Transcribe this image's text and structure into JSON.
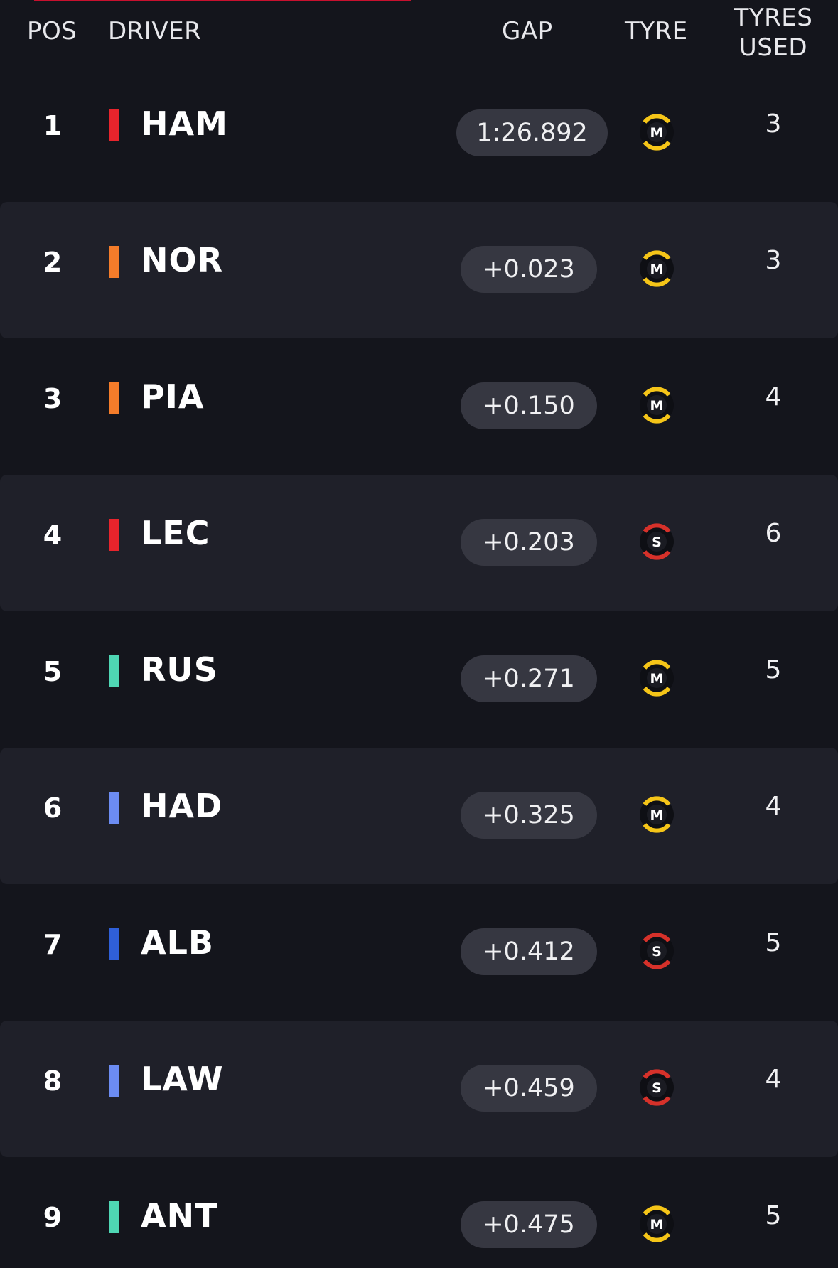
{
  "header": {
    "pos": "POS",
    "driver": "DRIVER",
    "gap": "GAP",
    "tyre": "TYRE",
    "tyres_used_line1": "TYRES",
    "tyres_used_line2": "USED"
  },
  "colors": {
    "background": "#14151c",
    "row_alt": "#1f2029",
    "pill": "#363741",
    "medium_tyre": "#f5c518",
    "soft_tyre": "#d6312a",
    "accent_line": "#c8102e"
  },
  "rows": [
    {
      "pos": "1",
      "code": "HAM",
      "team_color": "#e8242c",
      "gap": "1:26.892",
      "tyre": "M",
      "tyre_icon": "medium-tyre-icon",
      "used": "3"
    },
    {
      "pos": "2",
      "code": "NOR",
      "team_color": "#f47c2a",
      "gap": "+0.023",
      "tyre": "M",
      "tyre_icon": "medium-tyre-icon",
      "used": "3"
    },
    {
      "pos": "3",
      "code": "PIA",
      "team_color": "#f47c2a",
      "gap": "+0.150",
      "tyre": "M",
      "tyre_icon": "medium-tyre-icon",
      "used": "4"
    },
    {
      "pos": "4",
      "code": "LEC",
      "team_color": "#e8242c",
      "gap": "+0.203",
      "tyre": "S",
      "tyre_icon": "soft-tyre-icon",
      "used": "6"
    },
    {
      "pos": "5",
      "code": "RUS",
      "team_color": "#4fd6b4",
      "gap": "+0.271",
      "tyre": "M",
      "tyre_icon": "medium-tyre-icon",
      "used": "5"
    },
    {
      "pos": "6",
      "code": "HAD",
      "team_color": "#6c8cf2",
      "gap": "+0.325",
      "tyre": "M",
      "tyre_icon": "medium-tyre-icon",
      "used": "4"
    },
    {
      "pos": "7",
      "code": "ALB",
      "team_color": "#2f5fd8",
      "gap": "+0.412",
      "tyre": "S",
      "tyre_icon": "soft-tyre-icon",
      "used": "5"
    },
    {
      "pos": "8",
      "code": "LAW",
      "team_color": "#6c8cf2",
      "gap": "+0.459",
      "tyre": "S",
      "tyre_icon": "soft-tyre-icon",
      "used": "4"
    },
    {
      "pos": "9",
      "code": "ANT",
      "team_color": "#4fd6b4",
      "gap": "+0.475",
      "tyre": "M",
      "tyre_icon": "medium-tyre-icon",
      "used": "5"
    }
  ]
}
